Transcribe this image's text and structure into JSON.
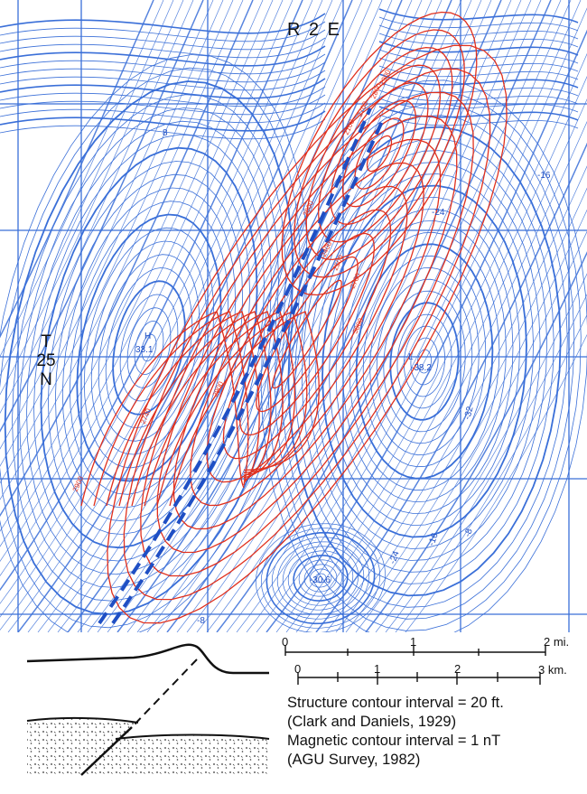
{
  "map": {
    "range_label": "R 2 E",
    "township_label": [
      "T",
      "25",
      "N"
    ],
    "magnetic_labels": [
      {
        "text": "8"
      },
      {
        "text": "-16"
      },
      {
        "text": "-24"
      },
      {
        "text": "-38.2"
      },
      {
        "text": "-32"
      },
      {
        "text": "-30.6"
      },
      {
        "text": "-24"
      },
      {
        "text": "-16"
      },
      {
        "text": "-8"
      },
      {
        "text": "-8"
      },
      {
        "text": "33.1"
      },
      {
        "text": "H"
      },
      {
        "text": "L"
      }
    ],
    "structure_labels": [
      "2100",
      "2700",
      "2800",
      "2900",
      "2600",
      "2400",
      "2500",
      "2760",
      "2900",
      "2740",
      "3000",
      "2900"
    ],
    "colors": {
      "magnetic_contour": "#3a6fd8",
      "magnetic_contour_heavy": "#1f4fc4",
      "structure_contour": "#e0301e",
      "grid": "#3a6fd8",
      "fault_trace": "#1f4fc4"
    }
  },
  "scale_bar": {
    "miles": {
      "ticks": [
        "0",
        "1",
        "2 mi."
      ]
    },
    "km": {
      "ticks": [
        "0",
        "1",
        "2",
        "3 km."
      ]
    }
  },
  "legend": {
    "line1": "Structure contour interval = 20 ft.",
    "line2": "(Clark and Daniels, 1929)",
    "line3": "Magnetic contour interval = 1 nT",
    "line4": "(AGU Survey, 1982)"
  }
}
